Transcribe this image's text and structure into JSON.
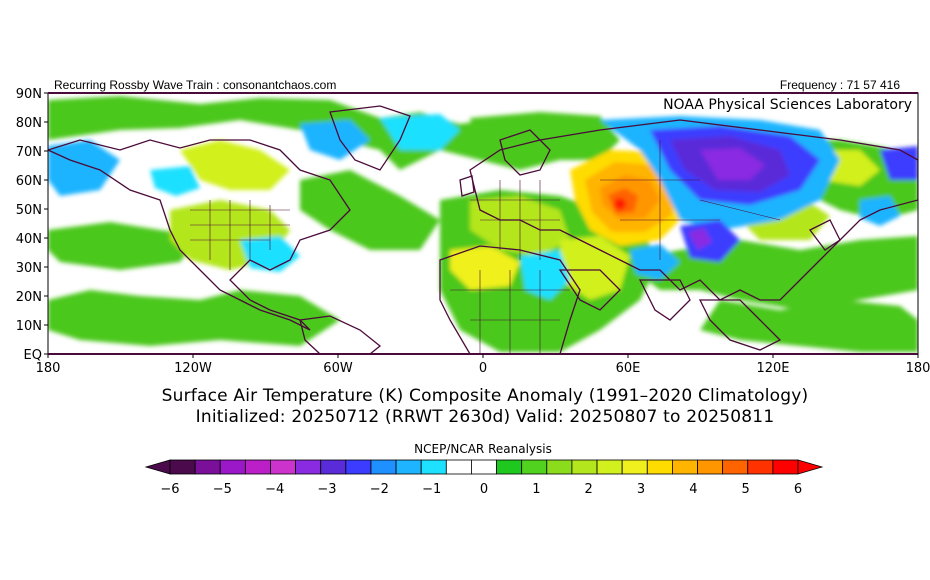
{
  "header": {
    "left": "Recurring Rossby Wave Train : consonantchaos.com",
    "right": "Frequency : 71 57 416"
  },
  "map": {
    "credit": "NOAA Physical Sciences Laboratory",
    "lat_labels": [
      "90N",
      "80N",
      "70N",
      "60N",
      "50N",
      "40N",
      "30N",
      "20N",
      "10N",
      "EQ"
    ],
    "lon_labels": [
      "180",
      "120W",
      "60W",
      "0",
      "60E",
      "120E",
      "180"
    ]
  },
  "title": {
    "line1": "Surface Air Temperature (K) Composite Anomaly (1991–2020 Climatology)",
    "line2": "Initialized: 20250712 (RRWT 2630d) Valid: 20250807 to 20250811"
  },
  "colorbar": {
    "title": "NCEP/NCAR Reanalysis",
    "labels": [
      "−6",
      "−5",
      "−4",
      "−3",
      "−2",
      "−1",
      "0",
      "1",
      "2",
      "3",
      "4",
      "5",
      "6"
    ],
    "colors": [
      "#4b0a4b",
      "#7a0f9a",
      "#9b18c8",
      "#bb20c8",
      "#cc33cc",
      "#8a2be2",
      "#5a2cd9",
      "#3c3cff",
      "#1e90ff",
      "#1eb4ff",
      "#1ee0ff",
      "#ffffff",
      "#ffffff",
      "#1ec81e",
      "#50d21e",
      "#8cdc1e",
      "#b4e61e",
      "#d2f01e",
      "#f0f01e",
      "#ffdc00",
      "#ffb400",
      "#ff9600",
      "#ff6400",
      "#ff3200",
      "#ff0000"
    ]
  }
}
